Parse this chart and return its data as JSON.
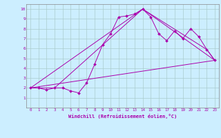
{
  "xlabel": "Windchill (Refroidissement éolien,°C)",
  "bg_color": "#cceeff",
  "line_color": "#aa00aa",
  "grid_color": "#aacccc",
  "xlim": [
    -0.5,
    23.5
  ],
  "ylim": [
    0,
    10.5
  ],
  "xticks": [
    0,
    1,
    2,
    3,
    4,
    5,
    6,
    7,
    8,
    9,
    10,
    11,
    12,
    13,
    14,
    15,
    16,
    17,
    18,
    19,
    20,
    21,
    22,
    23
  ],
  "yticks": [
    1,
    2,
    3,
    4,
    5,
    6,
    7,
    8,
    9,
    10
  ],
  "line1_x": [
    0,
    1,
    2,
    3,
    4,
    5,
    6,
    7,
    8,
    9,
    10,
    11,
    12,
    13,
    14,
    15,
    16,
    17,
    18,
    19,
    20,
    21,
    22,
    23
  ],
  "line1_y": [
    2.0,
    2.0,
    1.8,
    2.0,
    2.0,
    1.7,
    1.5,
    2.5,
    4.4,
    6.4,
    7.5,
    9.2,
    9.3,
    9.5,
    10.0,
    9.2,
    7.5,
    6.8,
    7.8,
    7.0,
    8.0,
    7.2,
    5.9,
    4.8
  ],
  "line2_x": [
    0,
    3,
    14,
    22,
    23
  ],
  "line2_y": [
    2.0,
    2.0,
    10.0,
    5.9,
    4.8
  ],
  "line3_x": [
    0,
    23
  ],
  "line3_y": [
    2.0,
    4.8
  ],
  "line4_x": [
    0,
    14,
    23
  ],
  "line4_y": [
    2.0,
    10.0,
    4.8
  ]
}
